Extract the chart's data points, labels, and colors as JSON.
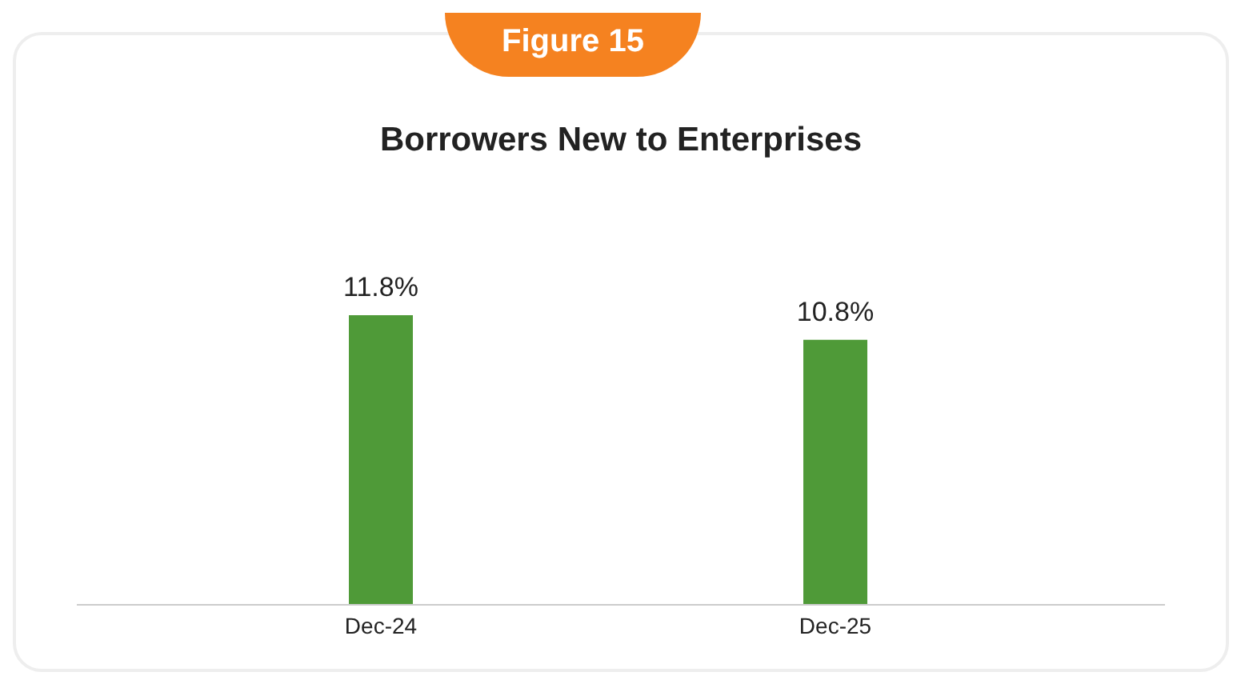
{
  "chart_data": {
    "type": "bar",
    "title": "Borrowers New to Enterprises",
    "annotations": [
      "Figure 15"
    ],
    "categories": [
      "Dec-24",
      "Dec-25"
    ],
    "values": [
      11.8,
      10.8
    ],
    "value_labels": [
      "11.8%",
      "10.8%"
    ],
    "color": "#4f9a38",
    "tick_labels": "x"
  }
}
